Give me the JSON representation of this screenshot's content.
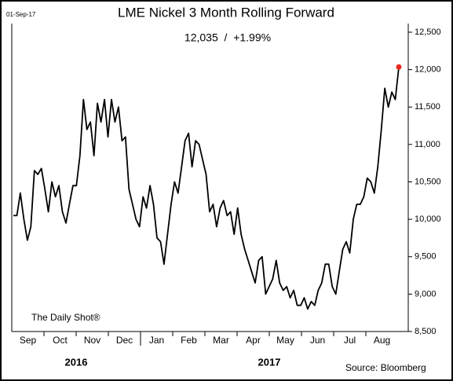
{
  "chart_data": {
    "type": "line",
    "title": "LME Nickel 3 Month Rolling Forward",
    "subtitle": "12,035  /  +1.99%",
    "date": "01-Sep-17",
    "watermark": "The Daily Shot®",
    "source": "Source: Bloomberg",
    "months": [
      "Sep",
      "Oct",
      "Nov",
      "Dec",
      "Jan",
      "Feb",
      "Mar",
      "Apr",
      "May",
      "Jun",
      "Jul",
      "Aug"
    ],
    "years": [
      "2016",
      "2017"
    ],
    "color": "#000000",
    "end_color": "#e8261e",
    "values": [
      10050,
      10050,
      10350,
      10000,
      9720,
      9900,
      10650,
      10600,
      10680,
      10400,
      10100,
      10500,
      10300,
      10450,
      10100,
      9950,
      10200,
      10450,
      10450,
      10850,
      11600,
      11200,
      11300,
      10850,
      11550,
      11300,
      11600,
      11100,
      11600,
      11300,
      11500,
      11050,
      11100,
      10400,
      10200,
      10000,
      9900,
      10300,
      10150,
      10450,
      10200,
      9750,
      9700,
      9400,
      9800,
      10200,
      10500,
      10350,
      10700,
      11050,
      11150,
      10700,
      11050,
      11000,
      10800,
      10600,
      10100,
      10200,
      9900,
      10150,
      10250,
      10050,
      10100,
      9800,
      10150,
      9800,
      9600,
      9450,
      9300,
      9150,
      9450,
      9500,
      9000,
      9100,
      9200,
      9450,
      9150,
      9050,
      9100,
      8950,
      9050,
      8850,
      8850,
      8950,
      8800,
      8900,
      8850,
      9050,
      9150,
      9400,
      9400,
      9100,
      9000,
      9300,
      9600,
      9700,
      9550,
      10000,
      10200,
      10200,
      10300,
      10550,
      10500,
      10350,
      10700,
      11200,
      11750,
      11500,
      11700,
      11600,
      12035
    ],
    "ylim": [
      8500,
      12500
    ],
    "yticks": [
      {
        "value": 8500,
        "label": "8,500"
      },
      {
        "value": 9000,
        "label": "9,000"
      },
      {
        "value": 9500,
        "label": "9,500"
      },
      {
        "value": 10000,
        "label": "10,000"
      },
      {
        "value": 10500,
        "label": "10,500"
      },
      {
        "value": 11000,
        "label": "11,000"
      },
      {
        "value": 11500,
        "label": "11,500"
      },
      {
        "value": 12000,
        "label": "12,000"
      },
      {
        "value": 12500,
        "label": "12,500"
      }
    ]
  }
}
